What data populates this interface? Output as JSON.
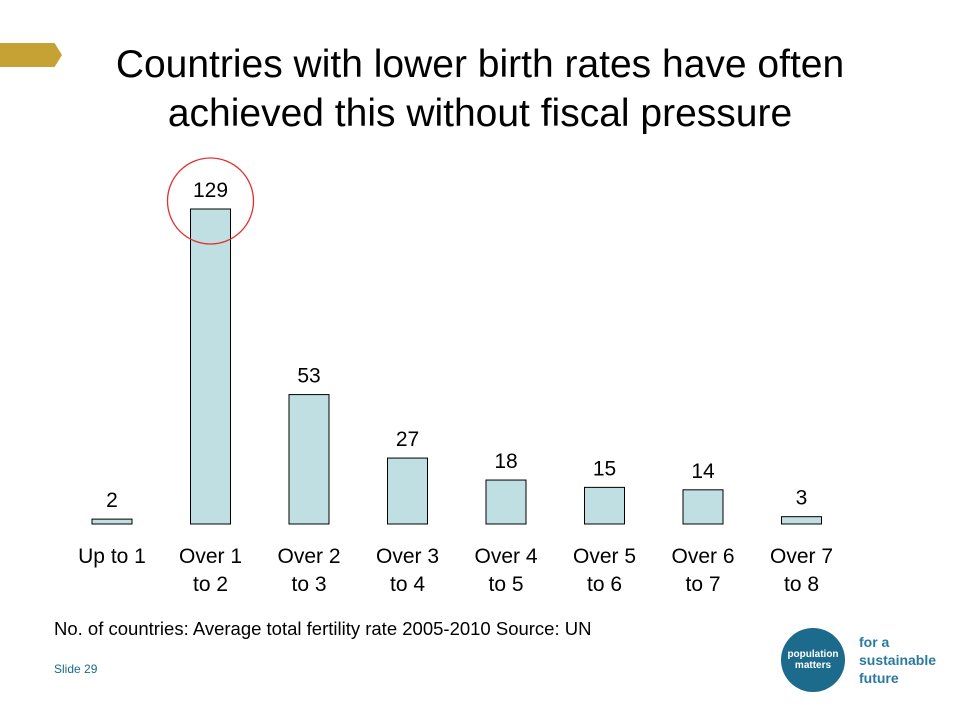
{
  "header": {
    "accent_color": "#C5A233",
    "title_lines": [
      "Countries with lower birth rates have often",
      "achieved this without fiscal pressure"
    ]
  },
  "chart_data": {
    "type": "bar",
    "categories": [
      [
        "Up to 1"
      ],
      [
        "Over 1",
        "to 2"
      ],
      [
        "Over 2",
        "to 3"
      ],
      [
        "Over 3",
        "to 4"
      ],
      [
        "Over 4",
        "to 5"
      ],
      [
        "Over 5",
        "to 6"
      ],
      [
        "Over 6",
        "to 7"
      ],
      [
        "Over 7",
        "to 8"
      ]
    ],
    "values": [
      2,
      129,
      53,
      27,
      18,
      15,
      14,
      3
    ],
    "data_labels": [
      "2",
      "129",
      "53",
      "27",
      "18",
      "15",
      "14",
      "3"
    ],
    "title": "",
    "xlabel": "",
    "ylabel": "",
    "ylim": [
      0,
      129
    ],
    "grid": false,
    "bar_color": "#BFDFE2",
    "bar_edge_color": "#000000",
    "highlight": {
      "category_index": 1,
      "shape": "circle",
      "color": "#E03030"
    }
  },
  "caption": "No. of countries: Average total fertility rate 2005-2010 Source: UN",
  "footer": {
    "slide_label": "Slide 29",
    "logo_lines": [
      "population",
      "matters"
    ],
    "tagline_lines": [
      "for a",
      "sustainable",
      "future"
    ],
    "brand_color": "#1C6A8C"
  }
}
